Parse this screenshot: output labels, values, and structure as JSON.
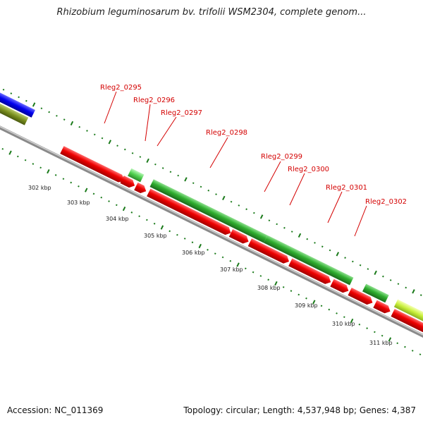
{
  "title": "Rhizobium leguminosarum bv. trifolii WSM2304, complete genom...",
  "footer": {
    "accession": "Accession: NC_011369",
    "summary": "Topology: circular; Length: 4,537,948 bp; Genes: 4,387"
  },
  "colors": {
    "reverse_strand": "#e00000",
    "forward_strand": "#2e9e2e",
    "backbone": "#8a8a8a",
    "ticks": "#1a7a1a",
    "label": "#d40000"
  },
  "kbp_ticks": [
    "302 kbp",
    "303 kbp",
    "304 kbp",
    "305 kbp",
    "306 kbp",
    "307 kbp",
    "308 kbp",
    "309 kbp",
    "310 kbp",
    "311 kbp"
  ],
  "gene_labels": [
    "Rleg2_0295",
    "Rleg2_0296",
    "Rleg2_0297",
    "Rleg2_0298",
    "Rleg2_0299",
    "Rleg2_0300",
    "Rleg2_0301",
    "Rleg2_0302"
  ]
}
